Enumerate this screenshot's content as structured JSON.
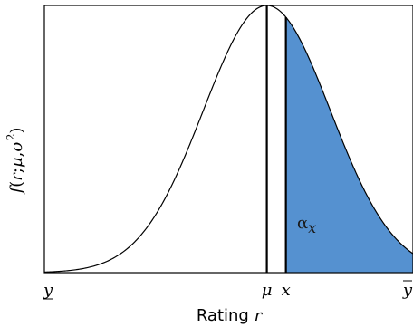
{
  "chart_data": {
    "type": "area",
    "xlabel_text": "Rating",
    "xlabel_var": "r",
    "ylabel": {
      "func": "f",
      "open": "(",
      "var": "r",
      "sep1": ";",
      "mu": "μ",
      "sep2": ",",
      "sigma": "σ",
      "power": "2",
      "close": ")"
    },
    "distribution": "normal",
    "mean": 0,
    "sd": 1,
    "xlim": [
      -3.5,
      2.3
    ],
    "ylim": [
      0,
      1
    ],
    "curve_peak": 1,
    "threshold_x": 0.3,
    "ticks": [
      {
        "value": -3.5,
        "label": "y",
        "mark": "underline"
      },
      {
        "value": 0,
        "label": "μ",
        "mark": "none"
      },
      {
        "value": 0.3,
        "label": "x",
        "mark": "none"
      },
      {
        "value": 2.3,
        "label": "y",
        "mark": "overline"
      }
    ],
    "shaded_region": {
      "from": 0.3,
      "to": 2.3,
      "color": "#5591d0",
      "label_base": "α",
      "label_sub": "x"
    },
    "vertical_lines_at": [
      0,
      0.3
    ],
    "colors": {
      "curve": "#000000",
      "fill": "#5591d0",
      "axes": "#000000"
    }
  }
}
